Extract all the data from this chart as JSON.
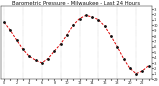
{
  "title": "Barometric Pressure - Milwaukee - Last 24 Hours",
  "hours": [
    0,
    1,
    2,
    3,
    4,
    5,
    6,
    7,
    8,
    9,
    10,
    11,
    12,
    13,
    14,
    15,
    16,
    17,
    18,
    19,
    20,
    21,
    22,
    23
  ],
  "pressure": [
    30.05,
    29.9,
    29.72,
    29.55,
    29.42,
    29.35,
    29.3,
    29.38,
    29.52,
    29.65,
    29.82,
    30.0,
    30.12,
    30.18,
    30.15,
    30.1,
    29.98,
    29.8,
    29.6,
    29.38,
    29.2,
    29.1,
    29.15,
    29.25
  ],
  "line_color": "#dd0000",
  "marker_color": "#111111",
  "bg_color": "#ffffff",
  "grid_color": "#999999",
  "title_fontsize": 3.8,
  "tick_fontsize": 2.5,
  "ylim_min": 29.0,
  "ylim_max": 30.35,
  "ytick_step": 0.1,
  "ytick_vals": [
    29.0,
    29.1,
    29.2,
    29.3,
    29.4,
    29.5,
    29.6,
    29.7,
    29.8,
    29.9,
    30.0,
    30.1,
    30.2,
    30.3
  ],
  "ytick_labels": [
    "29",
    ".1",
    ".2",
    ".3",
    ".4",
    ".5",
    ".6",
    ".7",
    ".8",
    ".9",
    "30",
    ".1",
    ".2",
    ".3"
  ]
}
